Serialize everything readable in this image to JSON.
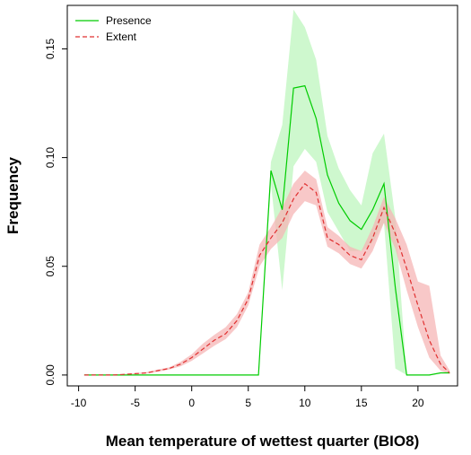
{
  "chart_data": {
    "type": "line",
    "xlabel": "Mean temperature of wettest quarter (BIO8)",
    "ylabel": "Frequency",
    "xlim": [
      -11,
      23.5
    ],
    "ylim": [
      -0.005,
      0.17
    ],
    "x_ticks": [
      -10,
      -5,
      0,
      5,
      10,
      15,
      20
    ],
    "y_ticks": [
      0.0,
      0.05,
      0.1,
      0.15
    ],
    "x_tick_labels": [
      "-10",
      "-5",
      "0",
      "5",
      "10",
      "15",
      "20"
    ],
    "y_tick_labels": [
      "0.00",
      "0.05",
      "0.10",
      "0.15"
    ],
    "grid": false,
    "legend_position": "top-left",
    "series": [
      {
        "name": "Presence",
        "color": "#00cc00",
        "band_color": "#bdf5bd",
        "line_style": "solid",
        "x": [
          -9.5,
          -8,
          -7,
          -6,
          -5,
          -4,
          -3,
          -2,
          -1,
          0,
          1,
          2,
          3,
          4,
          5,
          5.9,
          7,
          8,
          9,
          10,
          11,
          12,
          13,
          14,
          15,
          16,
          17,
          18,
          19,
          20,
          21,
          22,
          22.8
        ],
        "y": [
          0,
          0,
          0,
          0,
          0,
          0,
          0,
          0,
          0,
          0,
          0,
          0,
          0,
          0,
          0,
          0,
          0.094,
          0.076,
          0.132,
          0.133,
          0.118,
          0.092,
          0.079,
          0.071,
          0.067,
          0.076,
          0.088,
          0.04,
          0,
          0,
          0,
          0.001,
          0.001
        ],
        "lower": [
          -9.5,
          -8,
          -7,
          -6,
          -5,
          -4,
          -3,
          -2,
          -1,
          0,
          1,
          2,
          3,
          4,
          5,
          5.9,
          7,
          8,
          9,
          10,
          11,
          12,
          13,
          14,
          15,
          16,
          17,
          18,
          19,
          20,
          21,
          22,
          22.8
        ],
        "lower_y": [
          0,
          0,
          0,
          0,
          0,
          0,
          0,
          0,
          0,
          0,
          0,
          0,
          0,
          0,
          0,
          0,
          0.088,
          0.039,
          0.096,
          0.104,
          0.098,
          0.075,
          0.066,
          0.057,
          0.057,
          0.061,
          0.07,
          0.003,
          0,
          0,
          0,
          0.001,
          0.001
        ],
        "upper_y": [
          0,
          0,
          0,
          0,
          0,
          0,
          0,
          0,
          0,
          0,
          0,
          0,
          0,
          0,
          0,
          0,
          0.098,
          0.115,
          0.168,
          0.16,
          0.145,
          0.11,
          0.095,
          0.085,
          0.078,
          0.102,
          0.111,
          0.072,
          0,
          0,
          0,
          0.001,
          0.001
        ]
      },
      {
        "name": "Extent",
        "color": "#e03030",
        "band_color": "#f5b5b5",
        "line_style": "dashed",
        "x": [
          -9.5,
          -8,
          -7,
          -6,
          -5,
          -4,
          -3,
          -2,
          -1,
          0,
          1,
          2,
          3,
          4,
          5,
          6,
          7,
          8,
          9,
          10,
          11,
          12,
          13,
          14,
          15,
          16,
          17,
          18,
          19,
          20,
          21,
          22,
          22.8
        ],
        "y": [
          0,
          0,
          0,
          0.0003,
          0.0006,
          0.001,
          0.002,
          0.003,
          0.005,
          0.008,
          0.012,
          0.016,
          0.019,
          0.025,
          0.035,
          0.055,
          0.063,
          0.07,
          0.081,
          0.088,
          0.084,
          0.063,
          0.06,
          0.055,
          0.053,
          0.063,
          0.077,
          0.065,
          0.049,
          0.032,
          0.016,
          0.005,
          0.001
        ],
        "lower_y": [
          0,
          0,
          0,
          0.0002,
          0.0004,
          0.0007,
          0.0015,
          0.0025,
          0.004,
          0.0065,
          0.01,
          0.0135,
          0.0165,
          0.022,
          0.032,
          0.05,
          0.058,
          0.063,
          0.074,
          0.08,
          0.078,
          0.059,
          0.056,
          0.051,
          0.049,
          0.057,
          0.07,
          0.058,
          0.039,
          0.022,
          0.008,
          0.002,
          0.0005
        ],
        "upper_y": [
          0,
          0,
          0,
          0.0005,
          0.0009,
          0.0013,
          0.0025,
          0.0035,
          0.006,
          0.0095,
          0.0145,
          0.0185,
          0.022,
          0.028,
          0.038,
          0.06,
          0.068,
          0.077,
          0.088,
          0.094,
          0.09,
          0.068,
          0.064,
          0.059,
          0.057,
          0.068,
          0.082,
          0.072,
          0.06,
          0.043,
          0.041,
          0.009,
          0.002
        ]
      }
    ]
  }
}
